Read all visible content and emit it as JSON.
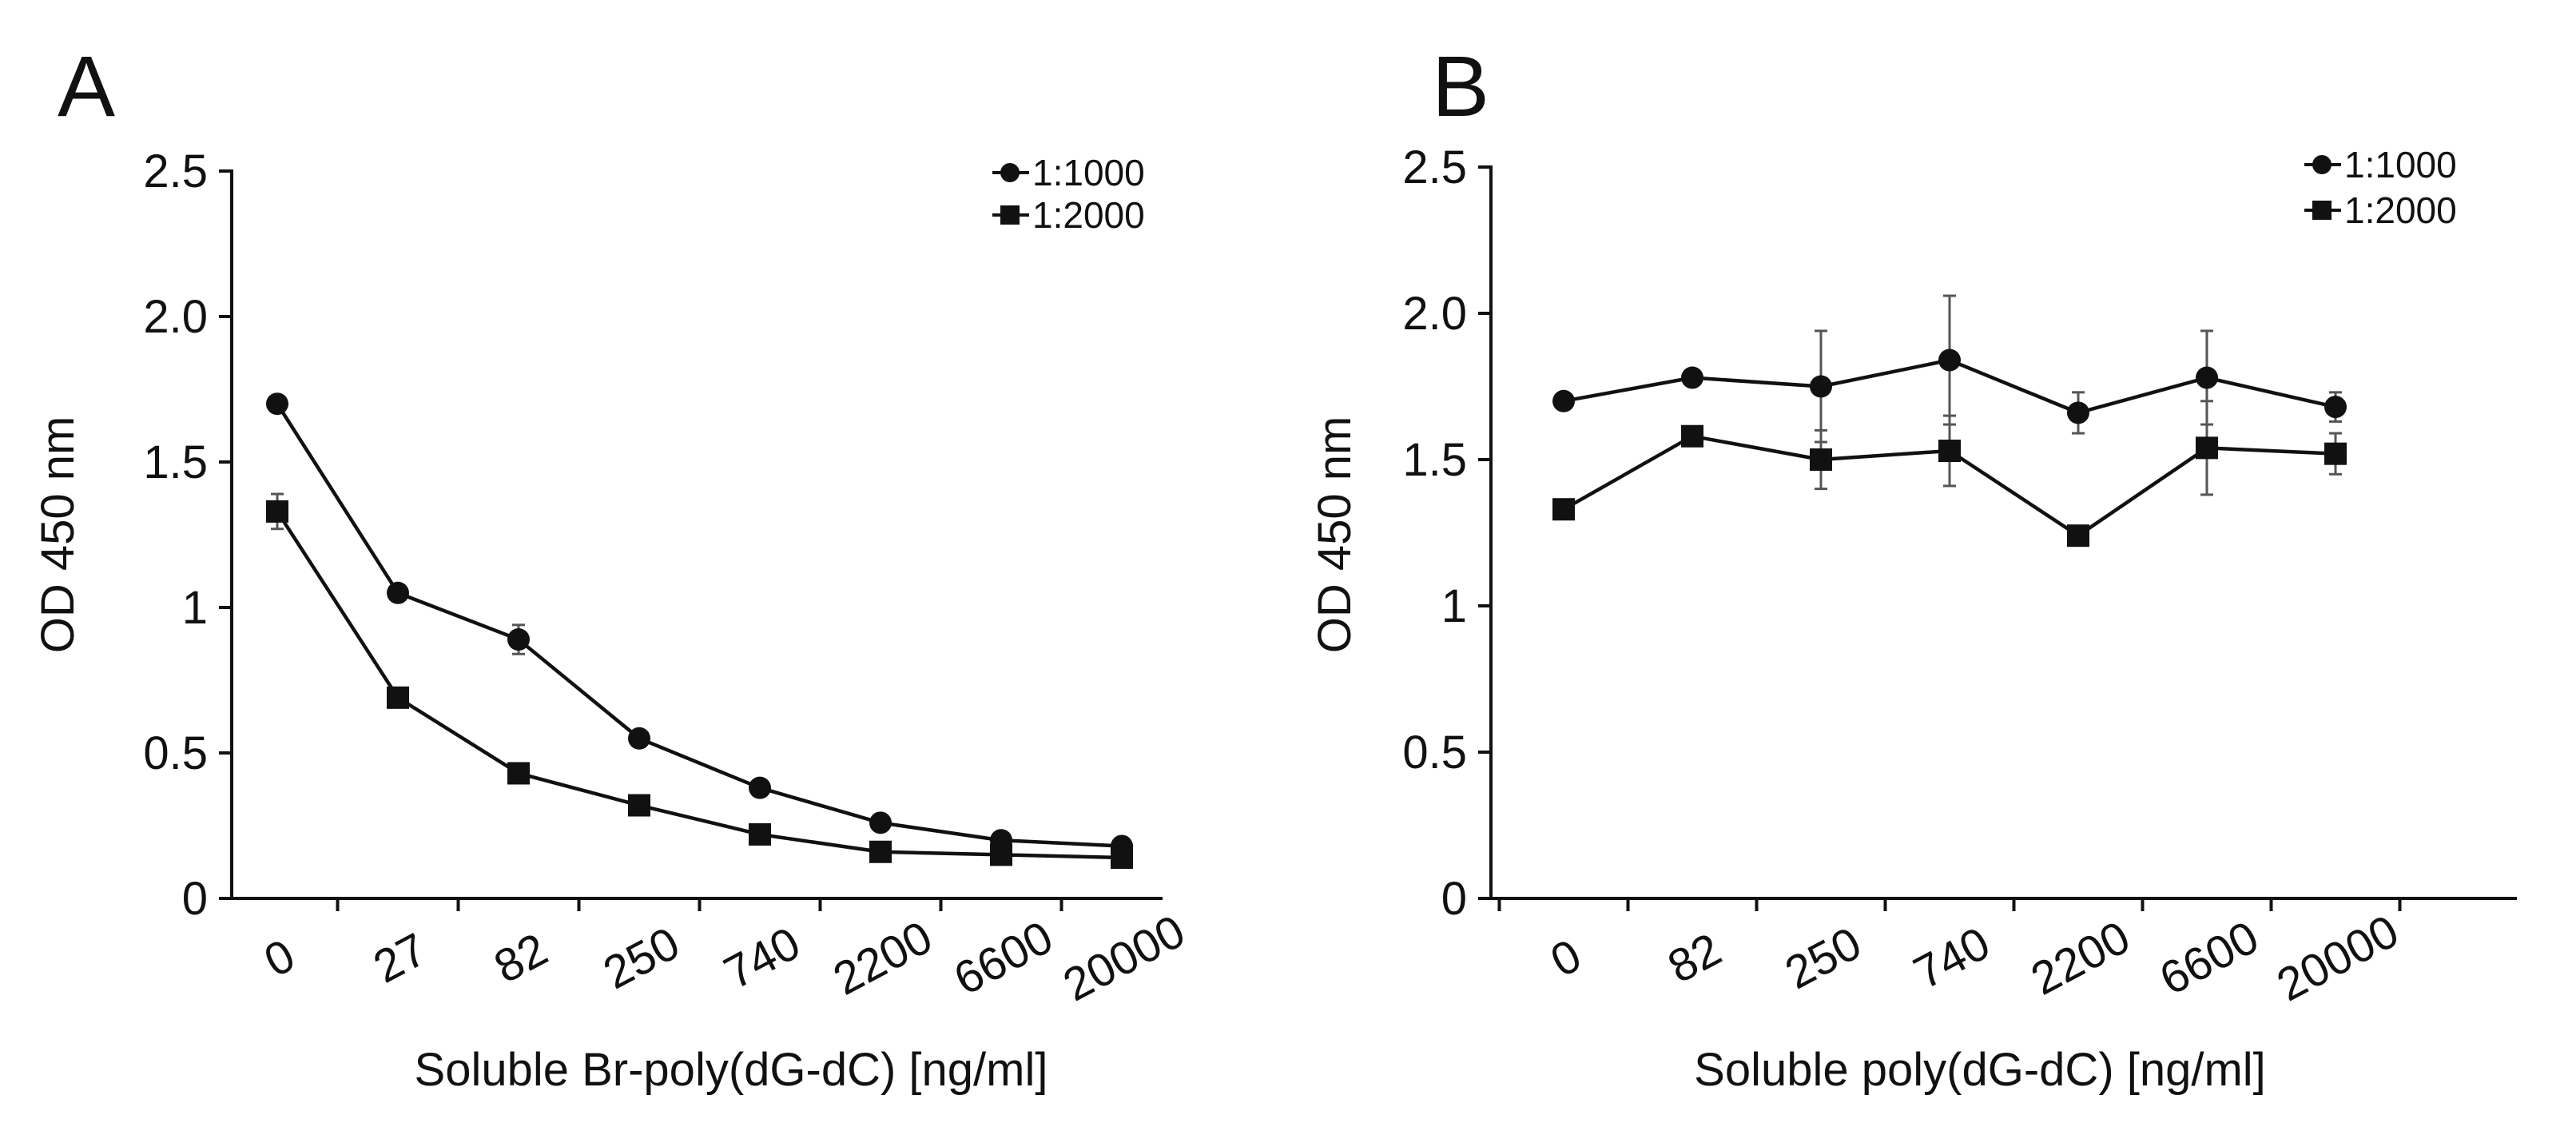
{
  "chart_data": [
    {
      "panel": "A",
      "type": "line",
      "categories": [
        "0",
        "27",
        "82",
        "250",
        "740",
        "2200",
        "6600",
        "20000"
      ],
      "series": [
        {
          "name": "1:1000",
          "marker": "circle",
          "values": [
            1.7,
            1.05,
            0.89,
            0.55,
            0.38,
            0.26,
            0.2,
            0.18
          ],
          "errors": [
            0.02,
            0.02,
            0.05,
            0.02,
            0.02,
            0.02,
            0.02,
            0.02
          ]
        },
        {
          "name": "1:2000",
          "marker": "square",
          "values": [
            1.33,
            0.69,
            0.43,
            0.32,
            0.22,
            0.16,
            0.15,
            0.14
          ],
          "errors": [
            0.06,
            0.02,
            0.02,
            0.02,
            0.02,
            0.02,
            0.02,
            0.02
          ]
        }
      ],
      "ylim": [
        0,
        2.5
      ],
      "yticks": [
        "0",
        "0.5",
        "1",
        "1.5",
        "2.0",
        "2.5"
      ],
      "ylabel": "OD 450 nm",
      "xlabel": "Soluble Br-poly(dG-dC) [ng/ml]",
      "legend": "top-right"
    },
    {
      "panel": "B",
      "type": "line",
      "categories": [
        "0",
        "82",
        "250",
        "740",
        "2200",
        "6600",
        "20000"
      ],
      "series": [
        {
          "name": "1:1000",
          "marker": "circle",
          "values": [
            1.7,
            1.78,
            1.75,
            1.84,
            1.66,
            1.78,
            1.68
          ],
          "errors": [
            0.02,
            0.02,
            0.19,
            0.22,
            0.07,
            0.16,
            0.05
          ]
        },
        {
          "name": "1:2000",
          "marker": "square",
          "values": [
            1.33,
            1.58,
            1.5,
            1.53,
            1.24,
            1.54,
            1.52
          ],
          "errors": [
            0.02,
            0.02,
            0.1,
            0.12,
            0.02,
            0.16,
            0.07
          ]
        }
      ],
      "ylim": [
        0,
        2.5
      ],
      "yticks": [
        "0",
        "0.5",
        "1",
        "1.5",
        "2.0",
        "2.5"
      ],
      "ylabel": "OD 450 nm",
      "xlabel": "Soluble poly(dG-dC) [ng/ml]",
      "legend": "top-right"
    }
  ]
}
